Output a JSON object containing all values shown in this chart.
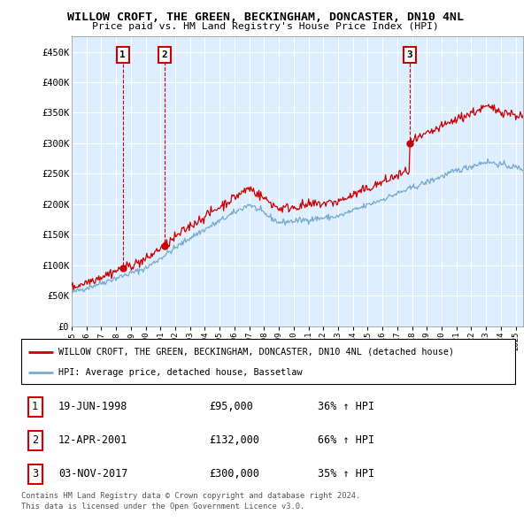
{
  "title": "WILLOW CROFT, THE GREEN, BECKINGHAM, DONCASTER, DN10 4NL",
  "subtitle": "Price paid vs. HM Land Registry's House Price Index (HPI)",
  "yticks": [
    0,
    50000,
    100000,
    150000,
    200000,
    250000,
    300000,
    350000,
    400000,
    450000
  ],
  "ytick_labels": [
    "£0",
    "£50K",
    "£100K",
    "£150K",
    "£200K",
    "£250K",
    "£300K",
    "£350K",
    "£400K",
    "£450K"
  ],
  "xlim_start": 1995.0,
  "xlim_end": 2025.5,
  "ylim": [
    0,
    475000
  ],
  "red_line_color": "#cc0000",
  "blue_line_color": "#77aacc",
  "background_color": "#ffffff",
  "plot_bg_color": "#ddeeff",
  "grid_color": "#ffffff",
  "sale_markers": [
    {
      "year": 1998.46,
      "price": 95000,
      "label": "1"
    },
    {
      "year": 2001.28,
      "price": 132000,
      "label": "2"
    },
    {
      "year": 2017.84,
      "price": 300000,
      "label": "3"
    }
  ],
  "legend_red_label": "WILLOW CROFT, THE GREEN, BECKINGHAM, DONCASTER, DN10 4NL (detached house)",
  "legend_blue_label": "HPI: Average price, detached house, Bassetlaw",
  "table_rows": [
    {
      "num": "1",
      "date": "19-JUN-1998",
      "price": "£95,000",
      "hpi": "36% ↑ HPI"
    },
    {
      "num": "2",
      "date": "12-APR-2001",
      "price": "£132,000",
      "hpi": "66% ↑ HPI"
    },
    {
      "num": "3",
      "date": "03-NOV-2017",
      "price": "£300,000",
      "hpi": "35% ↑ HPI"
    }
  ],
  "footnote1": "Contains HM Land Registry data © Crown copyright and database right 2024.",
  "footnote2": "This data is licensed under the Open Government Licence v3.0."
}
